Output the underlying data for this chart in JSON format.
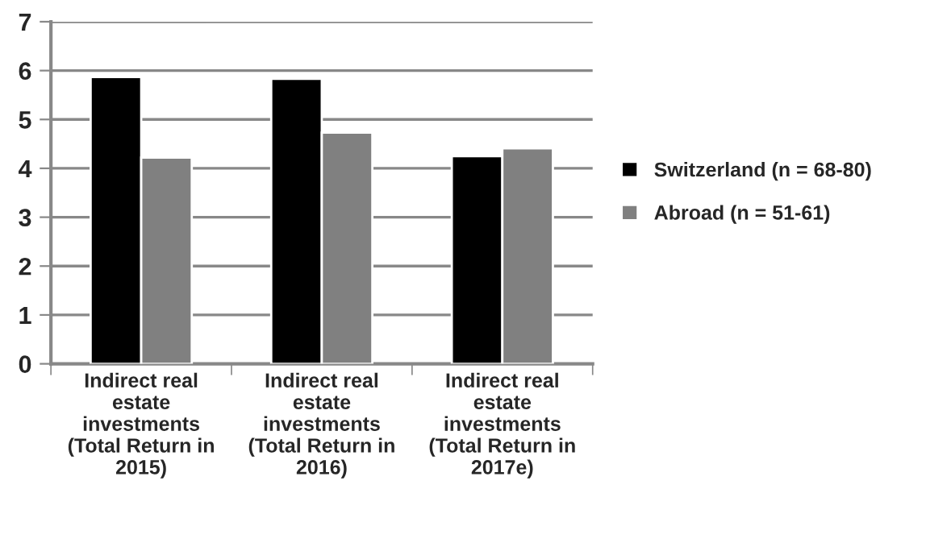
{
  "chart_data": {
    "type": "bar",
    "categories": [
      "Indirect real\nestate\ninvestments\n(Total Return in\n2015)",
      "Indirect real\nestate\ninvestments\n(Total Return in\n2016)",
      "Indirect real\nestate\ninvestments\n(Total Return in\n2017e)"
    ],
    "series": [
      {
        "name": "Switzerland (n = 68-80)",
        "color": "#000000",
        "values": [
          5.87,
          5.83,
          4.25
        ]
      },
      {
        "name": "Abroad (n = 51-61)",
        "color": "#808080",
        "values": [
          4.22,
          4.73,
          4.41
        ]
      }
    ],
    "ylim": [
      0,
      7
    ],
    "yticks": [
      0,
      1,
      2,
      3,
      4,
      5,
      6,
      7
    ],
    "grid": "y",
    "legend": "right"
  }
}
